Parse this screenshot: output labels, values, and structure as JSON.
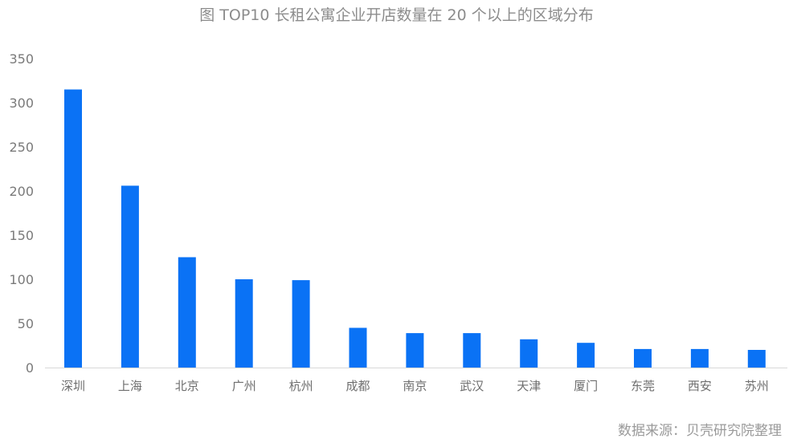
{
  "title": "图 TOP10 长租公寓企业开店数量在 20 个以上的区域分布",
  "source": "数据来源：贝壳研究院整理",
  "chart_data": {
    "type": "bar",
    "categories": [
      "深圳",
      "上海",
      "北京",
      "广州",
      "杭州",
      "成都",
      "南京",
      "武汉",
      "天津",
      "厦门",
      "东莞",
      "西安",
      "苏州"
    ],
    "values": [
      315,
      206,
      125,
      100,
      99,
      45,
      39,
      39,
      32,
      28,
      21,
      21,
      20
    ],
    "ylim": [
      0,
      350
    ],
    "yticks": [
      0,
      50,
      100,
      150,
      200,
      250,
      300,
      350
    ],
    "grid": false,
    "bar_color": "#0a72f5",
    "axis_color": "#d9d9d9"
  }
}
